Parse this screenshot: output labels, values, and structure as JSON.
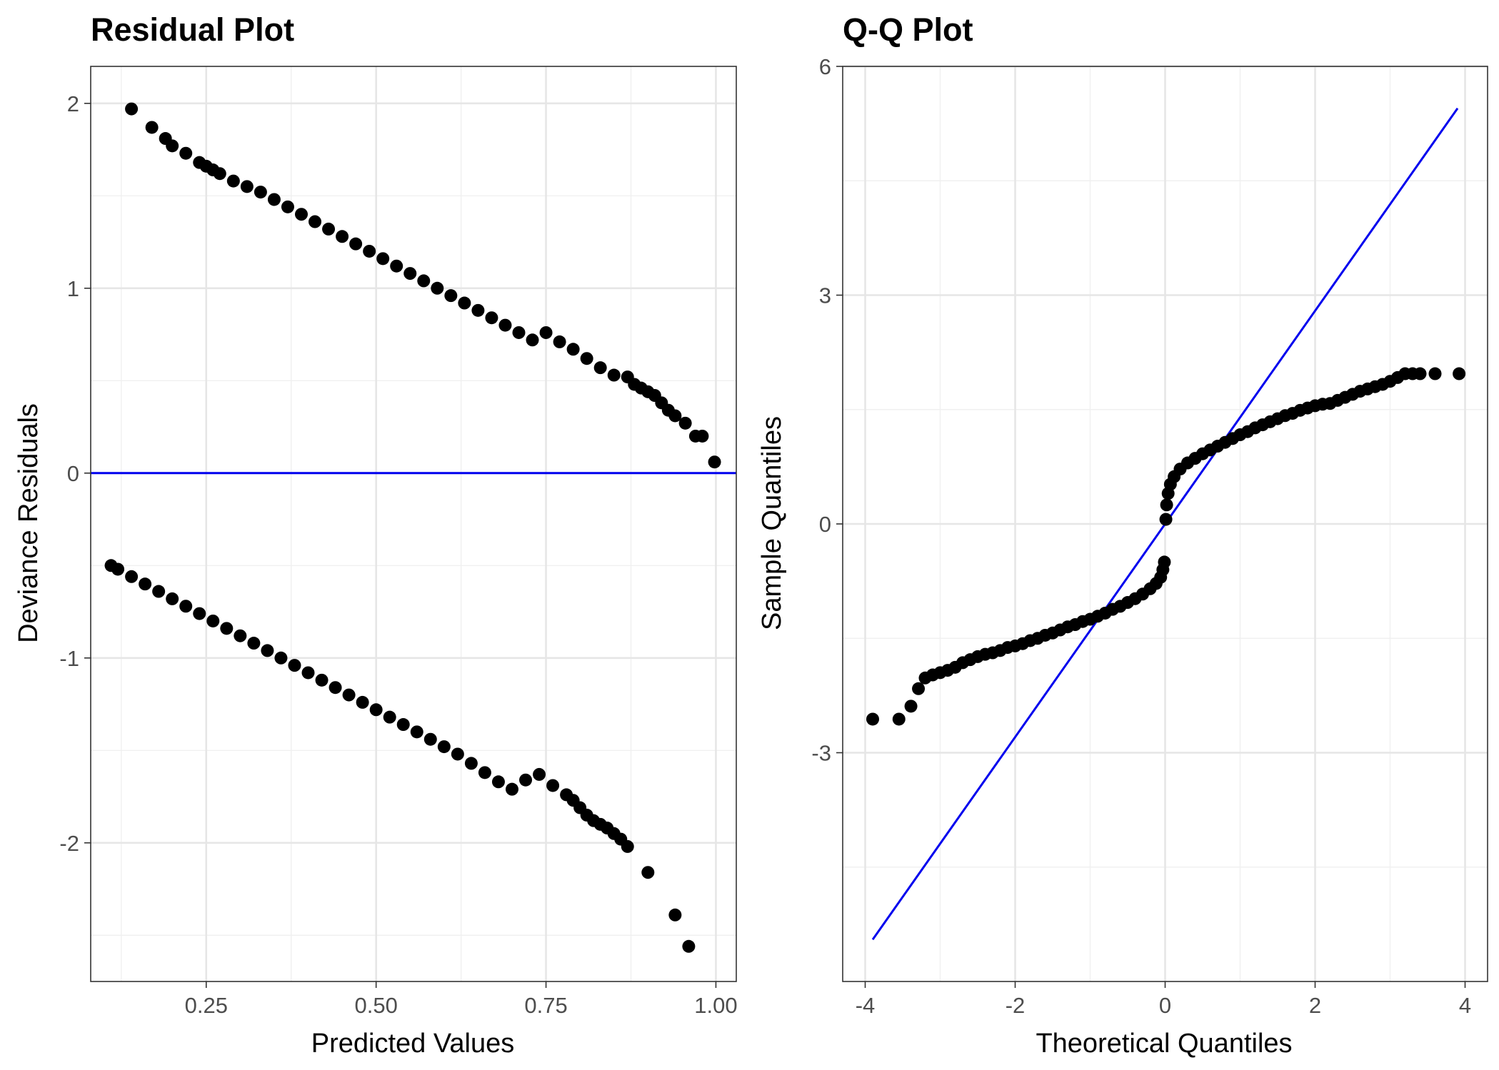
{
  "colors": {
    "points": "#000000",
    "reference_line": "#0000ee",
    "background": "#ffffff"
  },
  "chart_data": [
    {
      "type": "scatter",
      "title": "Residual Plot",
      "xlabel": "Predicted Values",
      "ylabel": "Deviance Residuals",
      "xlim": [
        0.08,
        1.03
      ],
      "ylim": [
        -2.75,
        2.2
      ],
      "xticks": [
        0.25,
        0.5,
        0.75,
        1.0
      ],
      "xtick_labels": [
        "0.25",
        "0.50",
        "0.75",
        "1.00"
      ],
      "yticks": [
        -2,
        -1,
        0,
        1,
        2
      ],
      "ytick_labels": [
        "-2",
        "-1",
        "0",
        "1",
        "2"
      ],
      "grid": true,
      "reference_line": {
        "type": "hline",
        "y": 0,
        "color": "#0000ee"
      },
      "series": [
        {
          "points": [
            [
              0.14,
              1.97
            ],
            [
              0.17,
              1.87
            ],
            [
              0.19,
              1.81
            ],
            [
              0.2,
              1.77
            ],
            [
              0.22,
              1.73
            ],
            [
              0.24,
              1.68
            ],
            [
              0.25,
              1.66
            ],
            [
              0.26,
              1.64
            ],
            [
              0.27,
              1.62
            ],
            [
              0.29,
              1.58
            ],
            [
              0.31,
              1.55
            ],
            [
              0.33,
              1.52
            ],
            [
              0.35,
              1.48
            ],
            [
              0.37,
              1.44
            ],
            [
              0.39,
              1.4
            ],
            [
              0.41,
              1.36
            ],
            [
              0.43,
              1.32
            ],
            [
              0.45,
              1.28
            ],
            [
              0.47,
              1.24
            ],
            [
              0.49,
              1.2
            ],
            [
              0.51,
              1.16
            ],
            [
              0.53,
              1.12
            ],
            [
              0.55,
              1.08
            ],
            [
              0.57,
              1.04
            ],
            [
              0.59,
              1.0
            ],
            [
              0.61,
              0.96
            ],
            [
              0.63,
              0.92
            ],
            [
              0.65,
              0.88
            ],
            [
              0.67,
              0.84
            ],
            [
              0.69,
              0.8
            ],
            [
              0.71,
              0.76
            ],
            [
              0.73,
              0.72
            ],
            [
              0.75,
              0.76
            ],
            [
              0.77,
              0.71
            ],
            [
              0.79,
              0.67
            ],
            [
              0.81,
              0.62
            ],
            [
              0.83,
              0.57
            ],
            [
              0.85,
              0.53
            ],
            [
              0.87,
              0.52
            ],
            [
              0.88,
              0.48
            ],
            [
              0.89,
              0.46
            ],
            [
              0.9,
              0.44
            ],
            [
              0.91,
              0.42
            ],
            [
              0.92,
              0.38
            ],
            [
              0.93,
              0.34
            ],
            [
              0.94,
              0.31
            ],
            [
              0.955,
              0.27
            ],
            [
              0.97,
              0.2
            ],
            [
              0.98,
              0.2
            ],
            [
              0.998,
              0.06
            ],
            [
              0.11,
              -0.5
            ],
            [
              0.12,
              -0.52
            ],
            [
              0.14,
              -0.56
            ],
            [
              0.16,
              -0.6
            ],
            [
              0.18,
              -0.64
            ],
            [
              0.2,
              -0.68
            ],
            [
              0.22,
              -0.72
            ],
            [
              0.24,
              -0.76
            ],
            [
              0.26,
              -0.8
            ],
            [
              0.28,
              -0.84
            ],
            [
              0.3,
              -0.88
            ],
            [
              0.32,
              -0.92
            ],
            [
              0.34,
              -0.96
            ],
            [
              0.36,
              -1.0
            ],
            [
              0.38,
              -1.04
            ],
            [
              0.4,
              -1.08
            ],
            [
              0.42,
              -1.12
            ],
            [
              0.44,
              -1.16
            ],
            [
              0.46,
              -1.2
            ],
            [
              0.48,
              -1.24
            ],
            [
              0.5,
              -1.28
            ],
            [
              0.52,
              -1.32
            ],
            [
              0.54,
              -1.36
            ],
            [
              0.56,
              -1.4
            ],
            [
              0.58,
              -1.44
            ],
            [
              0.6,
              -1.48
            ],
            [
              0.62,
              -1.52
            ],
            [
              0.64,
              -1.57
            ],
            [
              0.66,
              -1.62
            ],
            [
              0.68,
              -1.67
            ],
            [
              0.7,
              -1.71
            ],
            [
              0.72,
              -1.66
            ],
            [
              0.74,
              -1.63
            ],
            [
              0.76,
              -1.69
            ],
            [
              0.78,
              -1.74
            ],
            [
              0.79,
              -1.77
            ],
            [
              0.8,
              -1.81
            ],
            [
              0.81,
              -1.85
            ],
            [
              0.82,
              -1.88
            ],
            [
              0.83,
              -1.9
            ],
            [
              0.84,
              -1.92
            ],
            [
              0.85,
              -1.95
            ],
            [
              0.86,
              -1.98
            ],
            [
              0.87,
              -2.02
            ],
            [
              0.9,
              -2.16
            ],
            [
              0.94,
              -2.39
            ],
            [
              0.96,
              -2.56
            ]
          ]
        }
      ]
    },
    {
      "type": "scatter",
      "title": "Q-Q Plot",
      "xlabel": "Theoretical Quantiles",
      "ylabel": "Sample Quantiles",
      "xlim": [
        -4.3,
        4.3
      ],
      "ylim": [
        -6.0,
        6.0
      ],
      "xticks": [
        -4,
        -2,
        0,
        2,
        4
      ],
      "xtick_labels": [
        "-4",
        "-2",
        "0",
        "2",
        "4"
      ],
      "yticks": [
        -3,
        0,
        3,
        6
      ],
      "ytick_labels": [
        "-3",
        "0",
        "3",
        "6"
      ],
      "grid": true,
      "reference_line": {
        "type": "segment",
        "x": [
          -3.9,
          3.9
        ],
        "y": [
          -5.45,
          5.45
        ],
        "color": "#0000ee"
      },
      "series": [
        {
          "points": [
            [
              -3.9,
              -2.56
            ],
            [
              -3.55,
              -2.56
            ],
            [
              -3.39,
              -2.39
            ],
            [
              -3.29,
              -2.16
            ],
            [
              -3.2,
              -2.02
            ],
            [
              -3.1,
              -1.98
            ],
            [
              -3.0,
              -1.95
            ],
            [
              -2.9,
              -1.92
            ],
            [
              -2.8,
              -1.88
            ],
            [
              -2.7,
              -1.82
            ],
            [
              -2.6,
              -1.78
            ],
            [
              -2.5,
              -1.74
            ],
            [
              -2.4,
              -1.71
            ],
            [
              -2.3,
              -1.69
            ],
            [
              -2.2,
              -1.66
            ],
            [
              -2.1,
              -1.62
            ],
            [
              -2.0,
              -1.6
            ],
            [
              -1.9,
              -1.57
            ],
            [
              -1.8,
              -1.53
            ],
            [
              -1.7,
              -1.5
            ],
            [
              -1.6,
              -1.46
            ],
            [
              -1.5,
              -1.43
            ],
            [
              -1.4,
              -1.39
            ],
            [
              -1.3,
              -1.35
            ],
            [
              -1.2,
              -1.32
            ],
            [
              -1.1,
              -1.28
            ],
            [
              -1.0,
              -1.25
            ],
            [
              -0.9,
              -1.21
            ],
            [
              -0.8,
              -1.17
            ],
            [
              -0.7,
              -1.12
            ],
            [
              -0.6,
              -1.08
            ],
            [
              -0.5,
              -1.03
            ],
            [
              -0.4,
              -0.98
            ],
            [
              -0.3,
              -0.92
            ],
            [
              -0.2,
              -0.85
            ],
            [
              -0.12,
              -0.78
            ],
            [
              -0.06,
              -0.7
            ],
            [
              -0.03,
              -0.6
            ],
            [
              -0.01,
              -0.5
            ],
            [
              0.01,
              0.06
            ],
            [
              0.02,
              0.25
            ],
            [
              0.04,
              0.4
            ],
            [
              0.07,
              0.52
            ],
            [
              0.12,
              0.62
            ],
            [
              0.2,
              0.72
            ],
            [
              0.3,
              0.8
            ],
            [
              0.4,
              0.86
            ],
            [
              0.5,
              0.92
            ],
            [
              0.6,
              0.97
            ],
            [
              0.7,
              1.02
            ],
            [
              0.8,
              1.07
            ],
            [
              0.9,
              1.12
            ],
            [
              1.0,
              1.17
            ],
            [
              1.1,
              1.21
            ],
            [
              1.2,
              1.26
            ],
            [
              1.3,
              1.3
            ],
            [
              1.4,
              1.34
            ],
            [
              1.5,
              1.38
            ],
            [
              1.6,
              1.42
            ],
            [
              1.7,
              1.45
            ],
            [
              1.8,
              1.49
            ],
            [
              1.9,
              1.52
            ],
            [
              2.0,
              1.55
            ],
            [
              2.1,
              1.57
            ],
            [
              2.2,
              1.58
            ],
            [
              2.3,
              1.62
            ],
            [
              2.4,
              1.66
            ],
            [
              2.5,
              1.7
            ],
            [
              2.6,
              1.74
            ],
            [
              2.7,
              1.77
            ],
            [
              2.8,
              1.8
            ],
            [
              2.9,
              1.83
            ],
            [
              3.0,
              1.87
            ],
            [
              3.1,
              1.92
            ],
            [
              3.2,
              1.97
            ],
            [
              3.3,
              1.97
            ],
            [
              3.4,
              1.97
            ],
            [
              3.6,
              1.97
            ],
            [
              3.92,
              1.97
            ]
          ]
        }
      ]
    }
  ]
}
